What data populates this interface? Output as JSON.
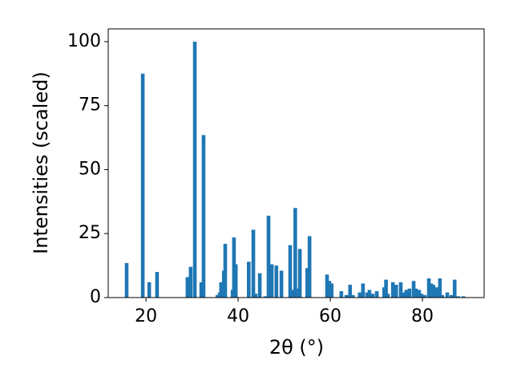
{
  "chart_data": {
    "type": "bar",
    "xlabel": "2θ (°)",
    "ylabel": "Intensities (scaled)",
    "color": "#1f77b4",
    "x": [
      15.8,
      19.3,
      20.7,
      22.4,
      29.0,
      29.7,
      30.6,
      32.0,
      32.5,
      35.5,
      36.0,
      36.3,
      36.9,
      37.2,
      38.8,
      39.1,
      39.5,
      42.3,
      43.3,
      43.8,
      44.7,
      45.9,
      46.6,
      47.3,
      48.3,
      49.4,
      51.3,
      51.8,
      52.4,
      52.9,
      53.4,
      55.0,
      55.5,
      59.3,
      59.8,
      60.3,
      62.4,
      63.5,
      64.3,
      64.9,
      66.4,
      67.1,
      68.0,
      68.5,
      69.2,
      70.1,
      71.7,
      72.1,
      72.5,
      73.6,
      74.3,
      75.3,
      75.8,
      76.5,
      77.2,
      78.1,
      78.6,
      79.3,
      79.8,
      80.5,
      81.4,
      81.9,
      82.4,
      83.0,
      83.8,
      84.3,
      85.4,
      86.3,
      87.0,
      87.8,
      88.9
    ],
    "values": [
      13.5,
      87.5,
      6,
      10,
      8,
      12,
      100,
      6,
      63.5,
      1,
      2,
      6,
      10.5,
      21,
      3,
      23.5,
      13,
      14,
      26.5,
      1.5,
      9.5,
      0.5,
      32,
      13,
      12.5,
      10.5,
      20.5,
      3,
      35,
      3.5,
      19,
      11.5,
      24,
      9,
      6.5,
      5.5,
      2.5,
      1,
      5,
      1,
      2,
      5.5,
      2,
      3,
      1.5,
      2.5,
      4,
      7,
      1.5,
      6,
      5,
      6,
      2,
      3,
      3.5,
      6.5,
      3.5,
      3,
      1.5,
      1,
      7.5,
      5.5,
      5,
      4,
      7.5,
      1,
      2,
      1,
      7,
      0.5,
      0.5
    ],
    "xlim": [
      11.8,
      93.4
    ],
    "ylim": [
      0,
      105
    ],
    "xticks": [
      20,
      40,
      60,
      80
    ],
    "yticks": [
      0,
      25,
      50,
      75,
      100
    ]
  }
}
